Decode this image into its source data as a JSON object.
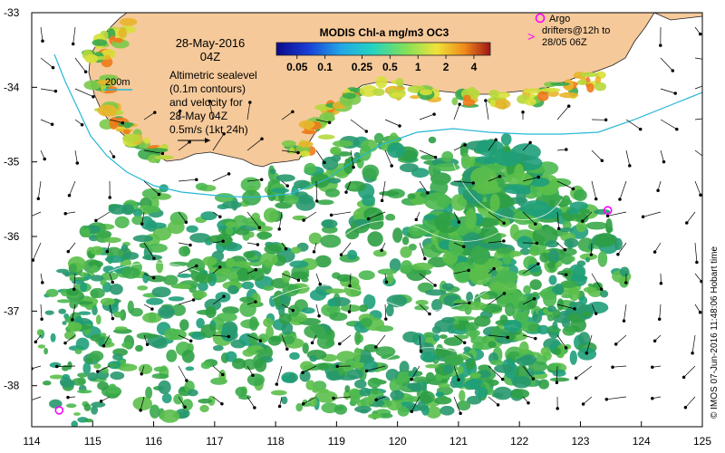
{
  "map": {
    "date_line1": "28-May-2016",
    "date_line2": "04Z",
    "scale_bar_label": "200m",
    "description_lines": [
      "Altimetric sealevel",
      "(0.1m contours)",
      "and velocity for",
      "28-May 04Z",
      "0.5m/s (1kt 24h)"
    ],
    "argo_label_lines": [
      "Argo",
      "drifters@12h to",
      "28/05 06Z"
    ],
    "credit": "© IMOS 07-Jun-2016 11:48:06 Hobart time",
    "colorbar": {
      "title": "MODIS Chl-a mg/m3 OC3",
      "tick_labels": [
        "0.05",
        "0.1",
        "0.25",
        "0.5",
        "1",
        "2",
        "4"
      ],
      "tick_values": [
        0.05,
        0.1,
        0.25,
        0.5,
        1,
        2,
        4
      ],
      "range": [
        0.03,
        6
      ],
      "scale": "log"
    },
    "x_axis": {
      "tick_labels": [
        "114",
        "115",
        "116",
        "117",
        "118",
        "119",
        "120",
        "121",
        "122",
        "123",
        "124",
        "125"
      ],
      "range": [
        114,
        125
      ]
    },
    "y_axis": {
      "tick_labels": [
        "-33",
        "-34",
        "-35",
        "-36",
        "-37",
        "-38"
      ],
      "range": [
        -38.55,
        -33
      ]
    },
    "argo_floats": [
      {
        "lon": 123.45,
        "lat": -35.65
      },
      {
        "lon": 114.45,
        "lat": -38.33
      }
    ],
    "colors": {
      "land": "#f5c99a",
      "chl_green": "#3aa94b",
      "chl_light": "#1f9e7a",
      "chl_yellow": "#d8e03a",
      "chl_orange": "#f07a1a",
      "coast_contour": "#28b7d6",
      "argo_marker": "#ff00ff"
    }
  }
}
